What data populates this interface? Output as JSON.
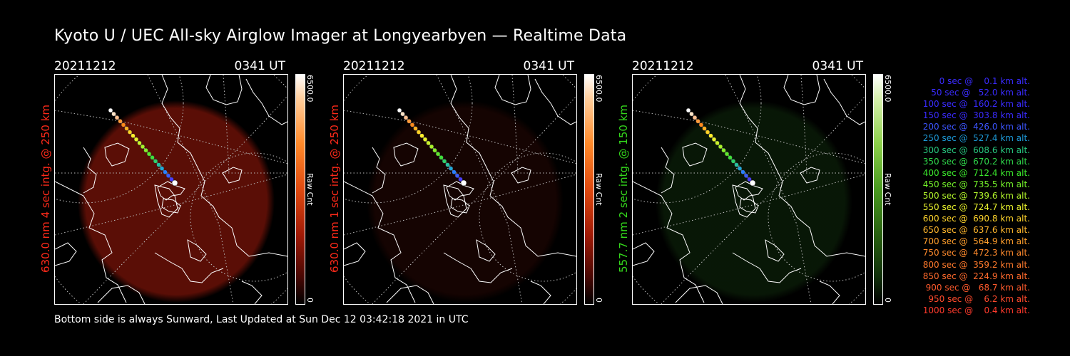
{
  "title": "Kyoto U / UEC All-sky Airglow Imager at Longyearbyen — Realtime Data",
  "footer": "Bottom side is always Sunward, Last Updated at Sun Dec 12 03:42:18 2021 in UTC",
  "panels": [
    {
      "date": "20211212",
      "time": "0341 UT",
      "channel_label": "630.0 nm 4 sec intg. @ 250 km",
      "label_color": "#ff2a1a",
      "cbar_max": "6500.0",
      "cbar_unit": "Raw Cnt",
      "cbar_min": "0",
      "cmap": "red",
      "glow_color": "#5a0e06",
      "glow_strength": 1.0
    },
    {
      "date": "20211212",
      "time": "0341 UT",
      "channel_label": "630.0 nm 1 sec intg. @ 250 km",
      "label_color": "#ff2a1a",
      "cbar_max": "6500.0",
      "cbar_unit": "Raw Cnt",
      "cbar_min": "0",
      "cmap": "red",
      "glow_color": "#2a0703",
      "glow_strength": 0.5
    },
    {
      "date": "20211212",
      "time": "0341 UT",
      "channel_label": "557.7 nm 2 sec intg. @ 150 km",
      "label_color": "#34d81c",
      "cbar_max": "6500.0",
      "cbar_unit": "Raw Cnt",
      "cbar_min": "0",
      "cmap": "green",
      "glow_color": "#0e260b",
      "glow_strength": 0.6
    }
  ],
  "legend": [
    {
      "text": "   0 sec @    0.1 km alt.",
      "color": "#3a2bff"
    },
    {
      "text": "  50 sec @   52.0 km alt.",
      "color": "#3a2bff"
    },
    {
      "text": " 100 sec @  160.2 km alt.",
      "color": "#3a2bff"
    },
    {
      "text": " 150 sec @  303.8 km alt.",
      "color": "#3a2bff"
    },
    {
      "text": " 200 sec @  426.0 km alt.",
      "color": "#3c55ff"
    },
    {
      "text": " 250 sec @  527.4 km alt.",
      "color": "#1d9ad8"
    },
    {
      "text": " 300 sec @  608.6 km alt.",
      "color": "#27c77f"
    },
    {
      "text": " 350 sec @  670.2 km alt.",
      "color": "#2fd64a"
    },
    {
      "text": " 400 sec @  712.4 km alt.",
      "color": "#3be82c"
    },
    {
      "text": " 450 sec @  735.5 km alt.",
      "color": "#74f22a"
    },
    {
      "text": " 500 sec @  739.6 km alt.",
      "color": "#b2f52b"
    },
    {
      "text": " 550 sec @  724.7 km alt.",
      "color": "#e9f22c"
    },
    {
      "text": " 600 sec @  690.8 km alt.",
      "color": "#ffd42c"
    },
    {
      "text": " 650 sec @  637.6 km alt.",
      "color": "#ffb62c"
    },
    {
      "text": " 700 sec @  564.9 km alt.",
      "color": "#ff9e2c"
    },
    {
      "text": " 750 sec @  472.3 km alt.",
      "color": "#ff8a2c"
    },
    {
      "text": " 800 sec @  359.2 km alt.",
      "color": "#ff7a2c"
    },
    {
      "text": " 850 sec @  224.9 km alt.",
      "color": "#ff6a2c"
    },
    {
      "text": " 900 sec @   68.7 km alt.",
      "color": "#ff5a2c"
    },
    {
      "text": " 950 sec @    6.2 km alt.",
      "color": "#ff4a2c"
    },
    {
      "text": "1000 sec @    0.4 km alt.",
      "color": "#ff3a2c"
    }
  ],
  "track_colors": [
    "#ffffff",
    "#ffe4c8",
    "#ffc090",
    "#ff9a3a",
    "#ff8a1c",
    "#ffb020",
    "#ffd226",
    "#fff02a",
    "#e8f22a",
    "#c8f22a",
    "#a8f22a",
    "#86ee2a",
    "#5ee82c",
    "#3fe03a",
    "#30d06a",
    "#26c0a0",
    "#22a8d8",
    "#2a80ff",
    "#3a5cff",
    "#4a3cff",
    "#ffffff"
  ]
}
